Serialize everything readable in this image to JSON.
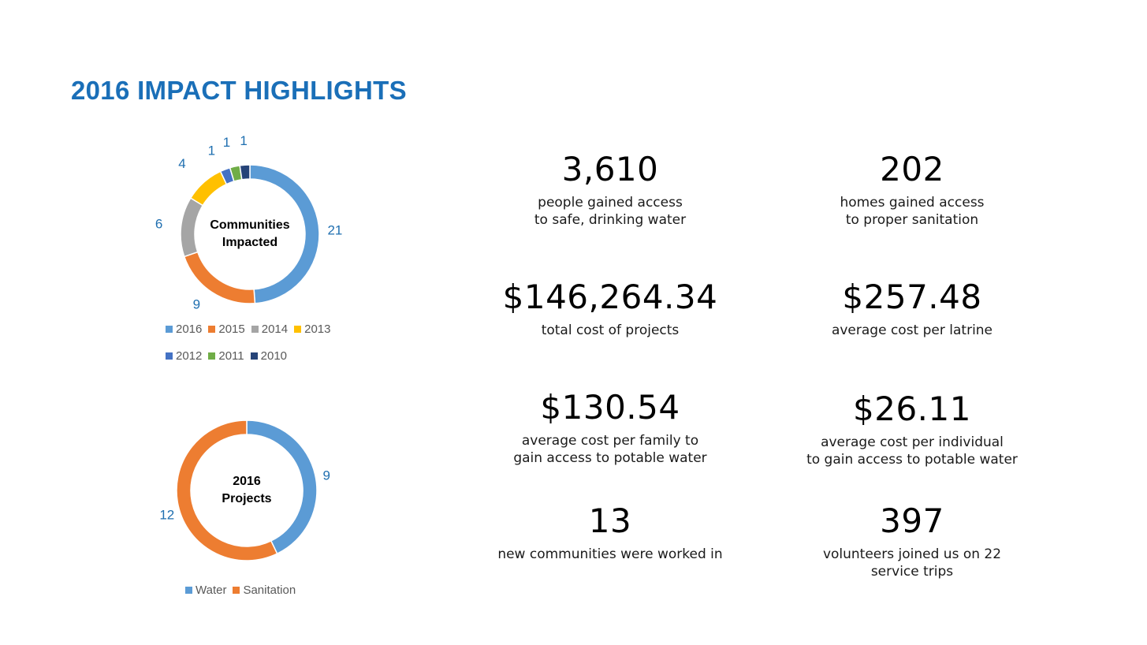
{
  "title": "2016 IMPACT HIGHLIGHTS",
  "chart_data": [
    {
      "type": "pie",
      "title": "Communities Impacted",
      "center_label": [
        "Communities",
        "Impacted"
      ],
      "categories": [
        "2016",
        "2015",
        "2014",
        "2013",
        "2012",
        "2011",
        "2010"
      ],
      "values": [
        21,
        9,
        6,
        4,
        1,
        1,
        1
      ],
      "colors": [
        "#5b9bd5",
        "#ed7d31",
        "#a5a5a5",
        "#ffc000",
        "#4472c4",
        "#70ad47",
        "#264478"
      ],
      "legend_rows": [
        [
          "2016",
          "2015",
          "2014",
          "2013"
        ],
        [
          "2012",
          "2011",
          "2010"
        ]
      ],
      "legend_position": "bottom"
    },
    {
      "type": "pie",
      "title": "2016 Projects",
      "center_label": [
        "2016",
        "Projects"
      ],
      "categories": [
        "Water",
        "Sanitation"
      ],
      "values": [
        9,
        12
      ],
      "colors": [
        "#5b9bd5",
        "#ed7d31"
      ],
      "legend_rows": [
        [
          "Water",
          "Sanitation"
        ]
      ],
      "legend_position": "bottom"
    }
  ],
  "stats": [
    {
      "value": "3,610",
      "desc": "people gained access\n to safe, drinking water"
    },
    {
      "value": "202",
      "desc": "homes gained access\nto proper sanitation"
    },
    {
      "value": "$146,264.34",
      "desc": "total cost of projects"
    },
    {
      "value": "$257.48",
      "desc": "average cost per latrine"
    },
    {
      "value": "$130.54",
      "desc": "average cost per family to\ngain access to potable water"
    },
    {
      "value": "$26.11",
      "desc": "average cost per individual\nto gain access to potable water"
    },
    {
      "value": "13",
      "desc": "new communities were worked in"
    },
    {
      "value": "397",
      "desc": "volunteers joined us on 22\nservice trips"
    }
  ]
}
